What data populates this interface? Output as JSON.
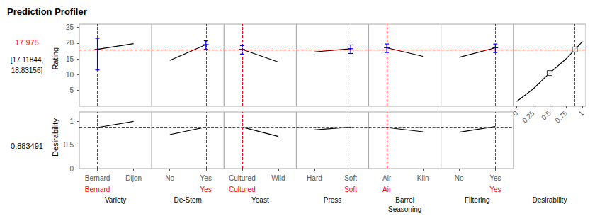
{
  "chart_data": {
    "type": "profiler",
    "title": "Prediction Profiler",
    "color": "#000000",
    "rows": [
      {
        "ylabel": "Rating",
        "ylim": [
          0,
          26
        ],
        "yticks": [
          5,
          10,
          15,
          20,
          25
        ],
        "current": {
          "value": 17.975,
          "label": "17.975",
          "color": "#ff0000"
        },
        "interval_labels": [
          "[17.11844,",
          "18.83156]"
        ]
      },
      {
        "ylabel": "Desirability",
        "ylim": [
          0,
          1.2
        ],
        "yticks": [
          0,
          0.5,
          1
        ],
        "current": {
          "value": 0.883491,
          "label": "0.883491",
          "color": "#ff0000"
        }
      }
    ],
    "panels": [
      {
        "type": "line",
        "xlabel": "Variety",
        "categories": [
          "Bernard",
          "Dijon"
        ],
        "selected": "Bernard",
        "rating": [
          18.0,
          19.8
        ],
        "error": {
          "minus": 6.5,
          "plus": 3.5,
          "color": "#0000ee"
        },
        "desirability": [
          0.87,
          1.0
        ]
      },
      {
        "type": "line",
        "xlabel": "De-Stem",
        "categories": [
          "No",
          "Yes"
        ],
        "selected": "Yes",
        "rating": [
          14.5,
          19.5
        ],
        "error": {
          "minus": 1.5,
          "plus": 1.2,
          "color": "#0000ee"
        },
        "desirability": [
          0.72,
          0.88
        ]
      },
      {
        "type": "line",
        "xlabel": "Yeast",
        "categories": [
          "Cultured",
          "Wild"
        ],
        "selected": "Cultured",
        "rating": [
          18.0,
          14.0
        ],
        "error": {
          "minus": 1.5,
          "plus": 1.2,
          "color": "#0000ee"
        },
        "desirability": [
          0.88,
          0.68
        ]
      },
      {
        "type": "line",
        "xlabel": "Press",
        "categories": [
          "Hard",
          "Soft"
        ],
        "selected": "Soft",
        "rating": [
          17.2,
          18.2
        ],
        "error": {
          "minus": 1.5,
          "plus": 1.2,
          "color": "#0000ee"
        },
        "desirability": [
          0.82,
          0.88
        ]
      },
      {
        "type": "line",
        "xlabel": [
          "Barrel",
          "Seasoning"
        ],
        "categories": [
          "Air",
          "Kiln"
        ],
        "selected": "Air",
        "rating": [
          18.5,
          15.8
        ],
        "error": {
          "minus": 1.5,
          "plus": 1.2,
          "color": "#0000ee"
        },
        "desirability": [
          0.87,
          0.78
        ]
      },
      {
        "type": "line",
        "xlabel": "Filtering",
        "categories": [
          "No",
          "Yes"
        ],
        "selected": "Yes",
        "rating": [
          15.5,
          18.5
        ],
        "error": {
          "minus": 1.5,
          "plus": 1.2,
          "color": "#0000ee"
        },
        "desirability": [
          0.77,
          0.89
        ]
      },
      {
        "type": "line",
        "xlabel": "Desirability",
        "x": [
          0.0,
          0.25,
          0.5,
          0.75,
          1.0
        ],
        "xlim": [
          -0.05,
          1.05
        ],
        "xticks": [
          0,
          0.25,
          0.5,
          0.75,
          1
        ],
        "rating": [
          1.5,
          5.5,
          10.5,
          15.0,
          20.5
        ],
        "markers": {
          "x": [
            0.5,
            0.883491
          ],
          "y": [
            10.5,
            17.975
          ]
        },
        "marker": "square"
      }
    ]
  }
}
